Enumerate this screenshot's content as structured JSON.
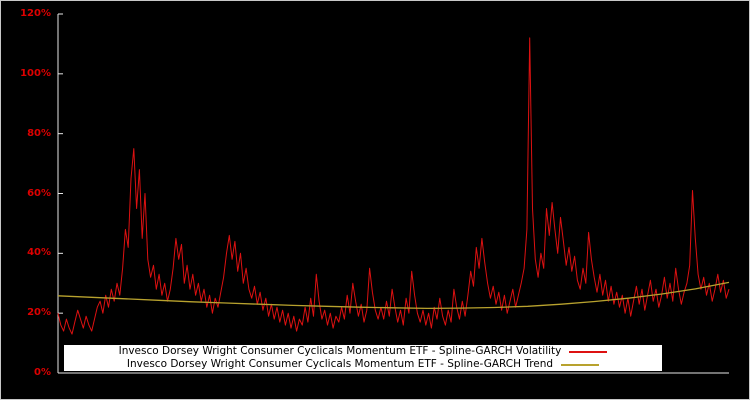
{
  "chart_data": {
    "type": "line",
    "title": "",
    "xlabel": "",
    "ylabel": "",
    "ylim": [
      0,
      120
    ],
    "grid": false,
    "legend_position": "bottom-center",
    "background": "#000000",
    "axis_color": "#e6e6e6",
    "tick_label_color": "#dd0000",
    "yticks": [
      {
        "v": 0,
        "label": "0%"
      },
      {
        "v": 20,
        "label": "20%"
      },
      {
        "v": 40,
        "label": "40%"
      },
      {
        "v": 60,
        "label": "60%"
      },
      {
        "v": 80,
        "label": "80%"
      },
      {
        "v": 100,
        "label": "100%"
      },
      {
        "v": 120,
        "label": "120%"
      }
    ],
    "series": [
      {
        "name": "Invesco Dorsey Wright Consumer Cyclicals Momentum ETF - Spline-GARCH Volatility",
        "color": "#dd1111",
        "unit": "%",
        "values": [
          20,
          16,
          14,
          18,
          15,
          13,
          17,
          21,
          18,
          15,
          19,
          16,
          14,
          18,
          22,
          24,
          20,
          26,
          22,
          28,
          24,
          30,
          26,
          35,
          48,
          42,
          65,
          75,
          55,
          68,
          45,
          60,
          38,
          32,
          36,
          28,
          33,
          26,
          30,
          24,
          28,
          35,
          45,
          38,
          43,
          30,
          36,
          28,
          33,
          26,
          30,
          24,
          28,
          22,
          26,
          20,
          25,
          22,
          27,
          32,
          40,
          46,
          38,
          44,
          34,
          40,
          30,
          35,
          28,
          25,
          29,
          23,
          27,
          21,
          25,
          19,
          23,
          18,
          22,
          17,
          21,
          16,
          20,
          15,
          19,
          14,
          18,
          16,
          22,
          17,
          25,
          19,
          33,
          24,
          18,
          21,
          16,
          20,
          15,
          19,
          17,
          22,
          18,
          26,
          20,
          30,
          24,
          19,
          23,
          17,
          21,
          35,
          27,
          21,
          18,
          22,
          18,
          24,
          19,
          28,
          22,
          17,
          21,
          16,
          25,
          20,
          34,
          26,
          20,
          17,
          21,
          16,
          20,
          15,
          22,
          18,
          25,
          19,
          16,
          21,
          17,
          28,
          22,
          18,
          24,
          19,
          26,
          34,
          29,
          42,
          35,
          45,
          37,
          30,
          25,
          29,
          23,
          27,
          21,
          26,
          20,
          24,
          28,
          22,
          26,
          30,
          35,
          48,
          112,
          55,
          38,
          32,
          40,
          35,
          55,
          46,
          57,
          48,
          40,
          52,
          44,
          36,
          42,
          34,
          39,
          31,
          28,
          35,
          30,
          47,
          38,
          32,
          27,
          33,
          26,
          31,
          24,
          29,
          23,
          27,
          22,
          26,
          20,
          25,
          19,
          24,
          29,
          23,
          28,
          21,
          26,
          31,
          24,
          28,
          22,
          26,
          32,
          25,
          30,
          24,
          35,
          28,
          23,
          27,
          30,
          36,
          61,
          45,
          33,
          28,
          32,
          26,
          30,
          24,
          28,
          33,
          27,
          31,
          25,
          28
        ]
      },
      {
        "name": "Invesco Dorsey Wright Consumer Cyclicals Momentum ETF - Spline-GARCH Trend",
        "color": "#b8a22e",
        "unit": "%",
        "points": [
          [
            0.0,
            25.8
          ],
          [
            0.05,
            25.3
          ],
          [
            0.1,
            24.8
          ],
          [
            0.15,
            24.3
          ],
          [
            0.2,
            23.8
          ],
          [
            0.25,
            23.4
          ],
          [
            0.3,
            23.0
          ],
          [
            0.35,
            22.6
          ],
          [
            0.4,
            22.3
          ],
          [
            0.45,
            22.0
          ],
          [
            0.5,
            21.8
          ],
          [
            0.55,
            21.6
          ],
          [
            0.6,
            21.7
          ],
          [
            0.65,
            21.9
          ],
          [
            0.7,
            22.3
          ],
          [
            0.75,
            23.0
          ],
          [
            0.8,
            23.9
          ],
          [
            0.85,
            25.0
          ],
          [
            0.9,
            26.4
          ],
          [
            0.95,
            28.1
          ],
          [
            1.0,
            30.3
          ]
        ]
      }
    ]
  },
  "legend": {
    "volatility_label": "Invesco Dorsey Wright Consumer Cyclicals Momentum ETF - Spline-GARCH Volatility",
    "trend_label": "Invesco Dorsey Wright Consumer Cyclicals Momentum ETF - Spline-GARCH Trend"
  }
}
